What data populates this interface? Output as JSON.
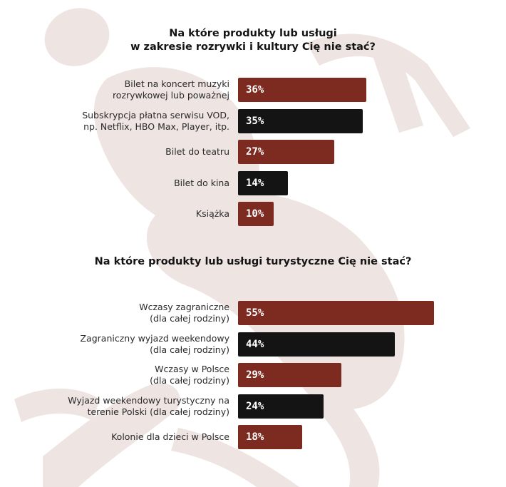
{
  "colors": {
    "red": "#7d2a20",
    "black": "#141414",
    "background_figure": "#eee4e2"
  },
  "background_figure_icon": "stylized-person-silhouette",
  "chart_data": [
    {
      "type": "bar",
      "orientation": "horizontal",
      "title_lines": [
        "Na które produkty lub usługi",
        "w zakresie rozrywki i kultury Cię nie stać?"
      ],
      "categories": [
        [
          "Bilet na koncert muzyki",
          "rozrywkowej lub poważnej"
        ],
        [
          "Subskrypcja płatna serwisu VOD,",
          "np. Netflix, HBO Max, Player, itp."
        ],
        [
          "Bilet do teatru"
        ],
        [
          "Bilet do kina"
        ],
        [
          "Książka"
        ]
      ],
      "values": [
        36,
        35,
        27,
        14,
        10
      ],
      "value_labels": [
        "36%",
        "35%",
        "27%",
        "14%",
        "10%"
      ],
      "bar_colors": [
        "#7d2a20",
        "#141414",
        "#7d2a20",
        "#141414",
        "#7d2a20"
      ],
      "xlim": [
        0,
        55
      ]
    },
    {
      "type": "bar",
      "orientation": "horizontal",
      "title_lines": [
        "Na które produkty lub usługi turystyczne Cię nie stać?"
      ],
      "categories": [
        [
          "Wczasy zagraniczne",
          "(dla całej rodziny)"
        ],
        [
          "Zagraniczny wyjazd weekendowy",
          "(dla całej rodziny)"
        ],
        [
          "Wczasy w Polsce",
          "(dla całej rodziny)"
        ],
        [
          "Wyjazd weekendowy turystyczny na",
          "terenie Polski (dla całej rodziny)"
        ],
        [
          "Kolonie dla dzieci w Polsce"
        ]
      ],
      "values": [
        55,
        44,
        29,
        24,
        18
      ],
      "value_labels": [
        "55%",
        "44%",
        "29%",
        "24%",
        "18%"
      ],
      "bar_colors": [
        "#7d2a20",
        "#141414",
        "#7d2a20",
        "#141414",
        "#7d2a20"
      ],
      "xlim": [
        0,
        55
      ]
    }
  ]
}
